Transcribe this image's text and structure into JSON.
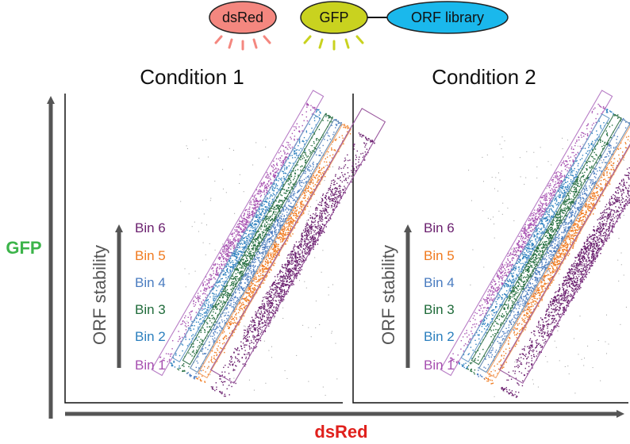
{
  "construct": {
    "dsred_label": "dsRed",
    "gfp_label": "GFP",
    "library_label": "ORF library",
    "colors": {
      "dsred": "#f4877f",
      "gfp": "#c9d21f",
      "library": "#1ab8ec"
    }
  },
  "axes": {
    "y_label": "GFP",
    "x_label": "dsRed",
    "y_color": "#3cb44a",
    "x_color": "#e0201c"
  },
  "panels": [
    {
      "title": "Condition 1"
    },
    {
      "title": "Condition 2"
    }
  ],
  "stability_label": "ORF stability",
  "bins": [
    {
      "label": "Bin 6",
      "color": "#6a1f6e"
    },
    {
      "label": "Bin 5",
      "color": "#f07a1f"
    },
    {
      "label": "Bin 4",
      "color": "#4a7cc0"
    },
    {
      "label": "Bin 3",
      "color": "#1f6b3a"
    },
    {
      "label": "Bin 2",
      "color": "#2b7fbe"
    },
    {
      "label": "Bin 1",
      "color": "#a64fb0"
    }
  ]
}
